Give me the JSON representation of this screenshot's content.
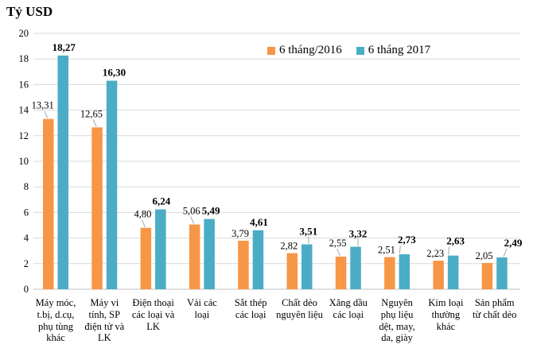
{
  "title": "Tỷ USD",
  "legend": [
    {
      "label": "6 tháng/2016",
      "color": "#F79646"
    },
    {
      "label": "6 tháng 2017",
      "color": "#4BACC6"
    }
  ],
  "colors": {
    "series_2016": "#F79646",
    "series_2017": "#4BACC6",
    "gridline": "#D9D9D9",
    "axis_line": "#BFBFBF",
    "leader_line": "#A6A6A6",
    "text": "#000000"
  },
  "chart_data": {
    "type": "bar",
    "title": "Tỷ USD",
    "ylabel": "Tỷ USD",
    "xlabel": "",
    "ylim": [
      0,
      20
    ],
    "yticks": [
      0,
      2,
      4,
      6,
      8,
      10,
      12,
      14,
      16,
      18,
      20
    ],
    "grid": true,
    "legend_position": "top-center-inside",
    "categories": [
      "Máy móc, t.bị, d.cụ, phụ tùng khác",
      "Máy vi tính, SP điện tử và LK",
      "Điện thoại các loại và LK",
      "Vải các loại",
      "Sắt thép các loại",
      "Chất dẻo nguyên liệu",
      "Xăng dầu các loại",
      "Nguyên phụ liệu dệt, may, da, giày",
      "Kim loại thường khác",
      "Sản phẩm từ chất dẻo"
    ],
    "category_labels": [
      "Máy móc,\nt.bị, d.cụ,\nphụ tùng\nkhác",
      "Máy vi\ntính, SP\nđiện tử và\nLK",
      "Điện thoại\ncác loại và\nLK",
      "Vải các\nloại",
      "Sắt thép\ncác loại",
      "Chất dẻo\nnguyên liệu",
      "Xăng dầu\ncác loại",
      "Nguyên\nphụ liệu\ndệt, may,\nda, giày",
      "Kim loại\nthường\nkhác",
      "Sản phẩm\ntừ chất dẻo"
    ],
    "series": [
      {
        "name": "6 tháng/2016",
        "color": "#F79646",
        "values": [
          13.31,
          12.65,
          4.8,
          5.06,
          3.79,
          2.82,
          2.55,
          2.51,
          2.23,
          2.05
        ],
        "labels": [
          "13,31",
          "12,65",
          "4,80",
          "5,06",
          "3,79",
          "2,82",
          "2,55",
          "2,51",
          "2,23",
          "2,05"
        ]
      },
      {
        "name": "6 tháng 2017",
        "color": "#4BACC6",
        "values": [
          18.27,
          16.3,
          6.24,
          5.49,
          4.61,
          3.51,
          3.32,
          2.73,
          2.63,
          2.49
        ],
        "labels": [
          "18,27",
          "16,30",
          "6,24",
          "5,49",
          "4,61",
          "3,51",
          "3,32",
          "2,73",
          "2,63",
          "2,49"
        ]
      }
    ]
  }
}
